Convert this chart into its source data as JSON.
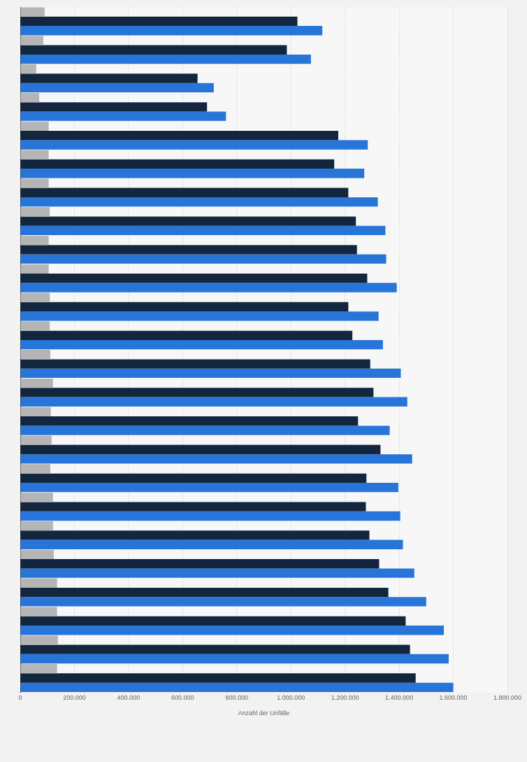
{
  "chart_data": {
    "type": "bar",
    "orientation": "horizontal",
    "xlabel": "Anzahl der Unfälle",
    "categories": [
      null,
      null,
      null,
      null,
      null,
      null,
      null,
      null,
      null,
      null,
      null,
      null,
      null,
      null,
      null,
      null,
      null,
      null,
      null,
      null,
      null,
      null,
      null,
      null
    ],
    "series": [
      {
        "color": "#b5b5b5",
        "values": [
          90000,
          85000,
          59000,
          70000,
          105000,
          105000,
          105000,
          109000,
          105000,
          105000,
          109000,
          109000,
          111000,
          121000,
          113000,
          116000,
          111000,
          121000,
          121000,
          124000,
          136000,
          136000,
          139000,
          136000
        ]
      },
      {
        "color": "#12263f",
        "values": [
          1024000,
          985000,
          655000,
          690000,
          1175000,
          1160000,
          1212000,
          1240000,
          1244000,
          1282000,
          1212000,
          1227000,
          1293000,
          1305000,
          1248000,
          1331000,
          1279000,
          1277000,
          1290000,
          1326000,
          1360000,
          1424000,
          1440000,
          1461000
        ]
      },
      {
        "color": "#2775d9",
        "values": [
          1116000,
          1074000,
          715000,
          760000,
          1284000,
          1271000,
          1321000,
          1349000,
          1352000,
          1391000,
          1324000,
          1340000,
          1406000,
          1430000,
          1365000,
          1448000,
          1397000,
          1404000,
          1414000,
          1456000,
          1500000,
          1565000,
          1583000,
          1600000
        ]
      }
    ],
    "xlim": [
      0,
      1800000
    ],
    "xticks": [
      0,
      {
        "value": 200000,
        "label": "200.000"
      },
      {
        "value": 400000,
        "label": "400.000"
      },
      {
        "value": 600000,
        "label": "600.000"
      },
      {
        "value": 800000,
        "label": "800.000"
      },
      {
        "value": 1000000,
        "label": "1.000.000"
      },
      {
        "value": 1200000,
        "label": "1.200.000"
      },
      {
        "value": 1400000,
        "label": "1.400.000"
      },
      {
        "value": 1600000,
        "label": "1.600.000"
      },
      {
        "value": 1800000,
        "label": "1.800.000"
      }
    ],
    "grid": "x",
    "legend": false,
    "tick_labels": "x"
  }
}
